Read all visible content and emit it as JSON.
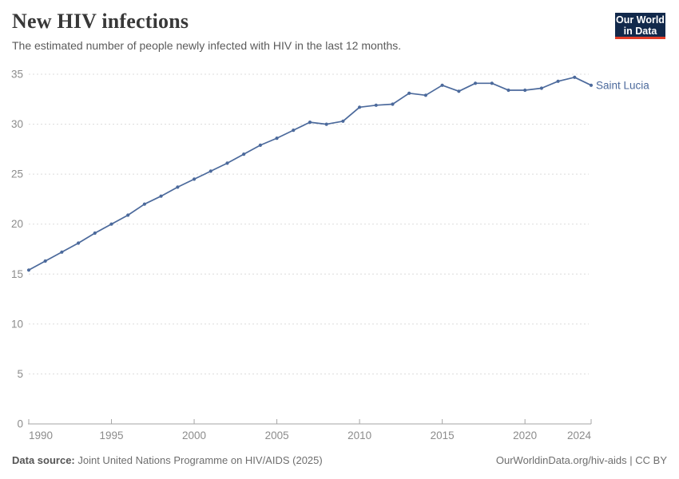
{
  "header": {
    "title": "New HIV infections",
    "subtitle": "The estimated number of people newly infected with HIV in the last 12 months."
  },
  "logo": {
    "line1": "Our World",
    "line2": "in Data",
    "bg_color": "#12294b",
    "accent_color": "#e23d28"
  },
  "chart_data": {
    "type": "line",
    "title": "New HIV infections",
    "entity_label": "Saint Lucia",
    "x": [
      1990,
      1991,
      1992,
      1993,
      1994,
      1995,
      1996,
      1997,
      1998,
      1999,
      2000,
      2001,
      2002,
      2003,
      2004,
      2005,
      2006,
      2007,
      2008,
      2009,
      2010,
      2011,
      2012,
      2013,
      2014,
      2015,
      2016,
      2017,
      2018,
      2019,
      2020,
      2021,
      2022,
      2023,
      2024
    ],
    "series": [
      {
        "name": "Saint Lucia",
        "color": "#4c6a9c",
        "values": [
          15.4,
          16.3,
          17.2,
          18.1,
          19.1,
          20.0,
          20.9,
          22.0,
          22.8,
          23.7,
          24.5,
          25.3,
          26.1,
          27.0,
          27.9,
          28.6,
          29.4,
          30.2,
          30.0,
          30.3,
          31.7,
          31.9,
          32.0,
          33.1,
          32.9,
          33.9,
          33.3,
          34.1,
          34.1,
          33.4,
          33.4,
          33.6,
          34.3,
          34.7,
          33.9
        ]
      }
    ],
    "xticks": [
      1990,
      1995,
      2000,
      2005,
      2010,
      2015,
      2020,
      2024
    ],
    "yticks": [
      0,
      5,
      10,
      15,
      20,
      25,
      30,
      35
    ],
    "xlim": [
      1990,
      2024
    ],
    "ylim": [
      0,
      35
    ],
    "grid": "horizontal-dashed",
    "legend_position": "right-of-line",
    "colors": {
      "grid": "#dcdcdc",
      "axis": "#a5a5a5",
      "tick_label": "#8c8c8c"
    }
  },
  "footer": {
    "source_label": "Data source:",
    "source_text": " Joint United Nations Programme on HIV/AIDS (2025)",
    "credit": "OurWorldinData.org/hiv-aids | CC BY"
  }
}
